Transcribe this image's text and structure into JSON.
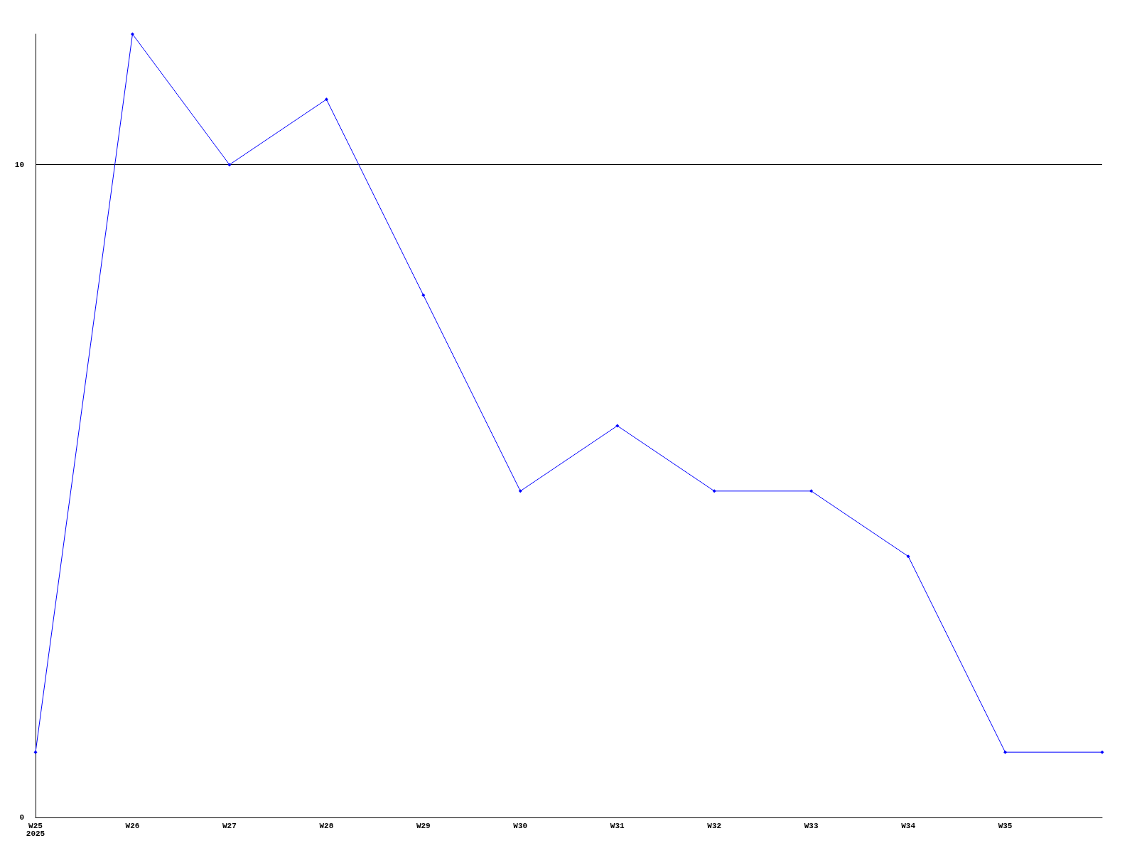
{
  "chart_data": {
    "type": "line",
    "categories": [
      "W25\n2025",
      "W26",
      "W27",
      "W28",
      "W29",
      "W30",
      "W31",
      "W32",
      "W33",
      "W34",
      "W35",
      null
    ],
    "series": [
      {
        "color": "#0000ff",
        "values": [
          1,
          12,
          10,
          11,
          8,
          5,
          6,
          5,
          5,
          4,
          1,
          1
        ]
      }
    ],
    "ylim": [
      0,
      12
    ],
    "yticks": [
      0,
      10
    ],
    "grid": "y",
    "marker": "diamond"
  }
}
